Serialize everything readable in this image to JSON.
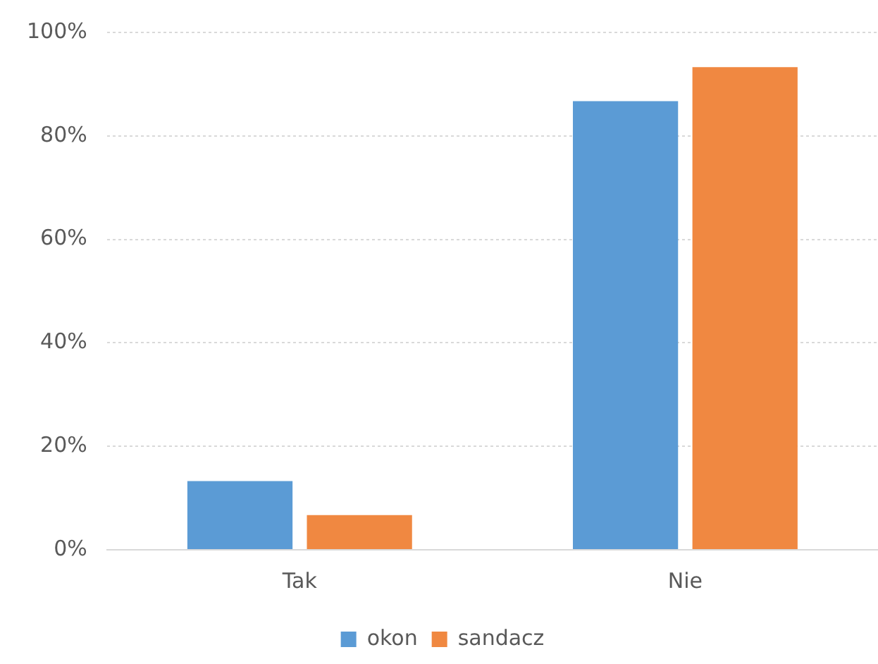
{
  "chart_data": {
    "type": "bar",
    "categories": [
      "Tak",
      "Nie"
    ],
    "series": [
      {
        "name": "okon",
        "color": "#5b9bd5",
        "values": [
          13.3,
          86.7
        ]
      },
      {
        "name": "sandacz",
        "color": "#f08841",
        "values": [
          6.7,
          93.3
        ]
      }
    ],
    "ylim": [
      0,
      100
    ],
    "yticks": [
      {
        "value": 0,
        "label": "0%"
      },
      {
        "value": 20,
        "label": "20%"
      },
      {
        "value": 40,
        "label": "40%"
      },
      {
        "value": 60,
        "label": "60%"
      },
      {
        "value": 80,
        "label": "80%"
      },
      {
        "value": 100,
        "label": "100%"
      }
    ],
    "grid": "y",
    "legend": "bottom"
  }
}
